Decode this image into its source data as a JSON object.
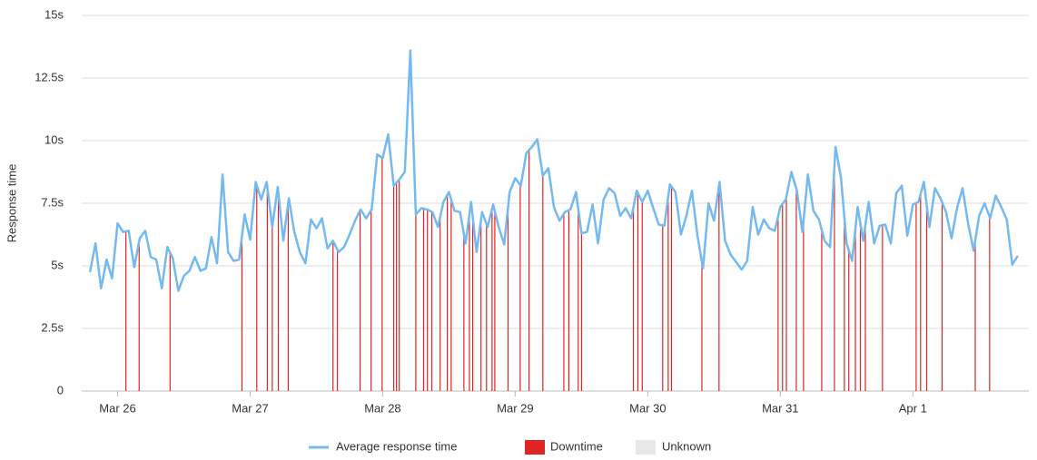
{
  "chart_data": {
    "type": "line",
    "y_label": "Response time",
    "x": [
      -5,
      -4,
      -3,
      -2,
      -1,
      0,
      1,
      2,
      3,
      4,
      5,
      6,
      7,
      8,
      9,
      10,
      11,
      12,
      13,
      14,
      15,
      16,
      17,
      18,
      19,
      20,
      21,
      22,
      23,
      24,
      25,
      26,
      27,
      28,
      29,
      30,
      31,
      32,
      33,
      34,
      35,
      36,
      37,
      38,
      39,
      40,
      41,
      42,
      43,
      44,
      45,
      46,
      47,
      48,
      49,
      50,
      51,
      52,
      53,
      54,
      55,
      56,
      57,
      58,
      59,
      60,
      61,
      62,
      63,
      64,
      65,
      66,
      67,
      68,
      69,
      70,
      71,
      72,
      73,
      74,
      75,
      76,
      77,
      78,
      79,
      80,
      81,
      82,
      83,
      84,
      85,
      86,
      87,
      88,
      89,
      90,
      91,
      92,
      93,
      94,
      95,
      96,
      97,
      98,
      99,
      100,
      101,
      102,
      103,
      104,
      105,
      106,
      107,
      108,
      109,
      110,
      111,
      112,
      113,
      114,
      115,
      116,
      117,
      118,
      119,
      120,
      121,
      122,
      123,
      124,
      125,
      126,
      127,
      128,
      129,
      130,
      131,
      132,
      133,
      134,
      135,
      136,
      137,
      138,
      139,
      140,
      141,
      142,
      143,
      144,
      145,
      146,
      147,
      148,
      149,
      150,
      151,
      152,
      153,
      154,
      155,
      156,
      157,
      158,
      159,
      160,
      161,
      162,
      163
    ],
    "xlim": [
      -6.5,
      165
    ],
    "xticks": [
      {
        "value": 0,
        "label": "Mar 26"
      },
      {
        "value": 24,
        "label": "Mar 27"
      },
      {
        "value": 48,
        "label": "Mar 28"
      },
      {
        "value": 72,
        "label": "Mar 29"
      },
      {
        "value": 96,
        "label": "Mar 30"
      },
      {
        "value": 120,
        "label": "Mar 31"
      },
      {
        "value": 144,
        "label": "Apr 1"
      }
    ],
    "ylim": [
      0,
      15
    ],
    "yticks": [
      0,
      {
        "value": 2.5,
        "label": "2.5s"
      },
      {
        "value": 5,
        "label": "5s"
      },
      {
        "value": 7.5,
        "label": "7.5s"
      },
      {
        "value": 10,
        "label": "10s"
      },
      {
        "value": 12.5,
        "label": "12.5s"
      },
      {
        "value": 15,
        "label": "15s"
      }
    ],
    "grid": true,
    "series": [
      {
        "name": "Average response time",
        "color": "#74b9f0",
        "values": [
          4.75,
          5.9,
          4.1,
          5.25,
          4.5,
          6.7,
          6.35,
          6.4,
          4.95,
          6.1,
          6.4,
          5.35,
          5.25,
          4.1,
          5.75,
          5.3,
          4.0,
          4.6,
          4.8,
          5.35,
          4.8,
          4.9,
          6.15,
          5.1,
          8.65,
          5.55,
          5.2,
          5.25,
          7.05,
          6.05,
          8.35,
          7.65,
          8.35,
          6.55,
          8.15,
          6.0,
          7.7,
          6.35,
          5.55,
          5.1,
          6.85,
          6.5,
          6.9,
          5.7,
          6.0,
          5.55,
          5.75,
          6.25,
          6.8,
          7.25,
          6.9,
          7.25,
          9.45,
          9.3,
          10.25,
          8.2,
          8.45,
          8.75,
          13.6,
          7.05,
          7.3,
          7.25,
          7.15,
          6.55,
          7.55,
          7.95,
          7.2,
          7.15,
          5.9,
          7.55,
          5.55,
          7.15,
          6.55,
          7.45,
          6.55,
          5.85,
          7.95,
          8.5,
          8.2,
          9.5,
          9.75,
          10.05,
          8.6,
          8.9,
          7.35,
          6.8,
          7.15,
          7.25,
          7.95,
          6.3,
          6.35,
          7.45,
          5.9,
          7.65,
          8.1,
          7.9,
          7.0,
          7.3,
          6.9,
          8.0,
          7.55,
          8.0,
          7.3,
          6.65,
          6.6,
          8.25,
          7.95,
          6.25,
          7.0,
          8.0,
          6.2,
          4.9,
          7.5,
          6.8,
          8.35,
          6.0,
          5.45,
          5.15,
          4.85,
          5.2,
          7.35,
          6.25,
          6.85,
          6.5,
          6.4,
          7.35,
          7.65,
          8.75,
          8.0,
          6.35,
          8.65,
          7.2,
          6.85,
          6.0,
          5.75,
          9.75,
          8.5,
          5.9,
          5.2,
          7.35,
          6.0,
          7.55,
          5.9,
          6.6,
          6.65,
          5.9,
          7.9,
          8.2,
          6.2,
          7.45,
          7.55,
          8.35,
          6.55,
          8.1,
          7.7,
          7.15,
          6.1,
          7.3,
          8.1,
          6.7,
          5.6,
          7.0,
          7.5,
          6.9,
          7.8,
          7.35,
          6.85,
          5.05,
          5.4
        ]
      }
    ],
    "downtime": {
      "name": "Downtime",
      "color": "#e02424",
      "x": [
        1.5,
        3.9,
        9.5,
        22.5,
        25.2,
        27.1,
        28.0,
        29.1,
        30.9,
        39.0,
        39.8,
        43.9,
        45.9,
        47.9,
        50.0,
        50.5,
        51.0,
        54.0,
        55.4,
        56.1,
        56.9,
        58.4,
        59.7,
        60.4,
        62.7,
        63.7,
        64.3,
        65.8,
        66.8,
        67.8,
        68.3,
        70.7,
        72.9,
        74.5,
        77.0,
        80.8,
        81.7,
        83.4,
        84.0,
        93.4,
        94.2,
        95.0,
        98.7,
        99.7,
        100.3,
        105.8,
        108.9,
        119.6,
        120.4,
        121.1,
        122.9,
        124.2,
        127.5,
        129.8,
        131.6,
        132.4,
        133.6,
        134.5,
        135.4,
        138.5,
        144.6,
        145.4,
        146.5,
        149.3,
        155.3,
        157.9
      ]
    },
    "unknown": {
      "name": "Unknown",
      "color": "#e8e8e8"
    }
  }
}
